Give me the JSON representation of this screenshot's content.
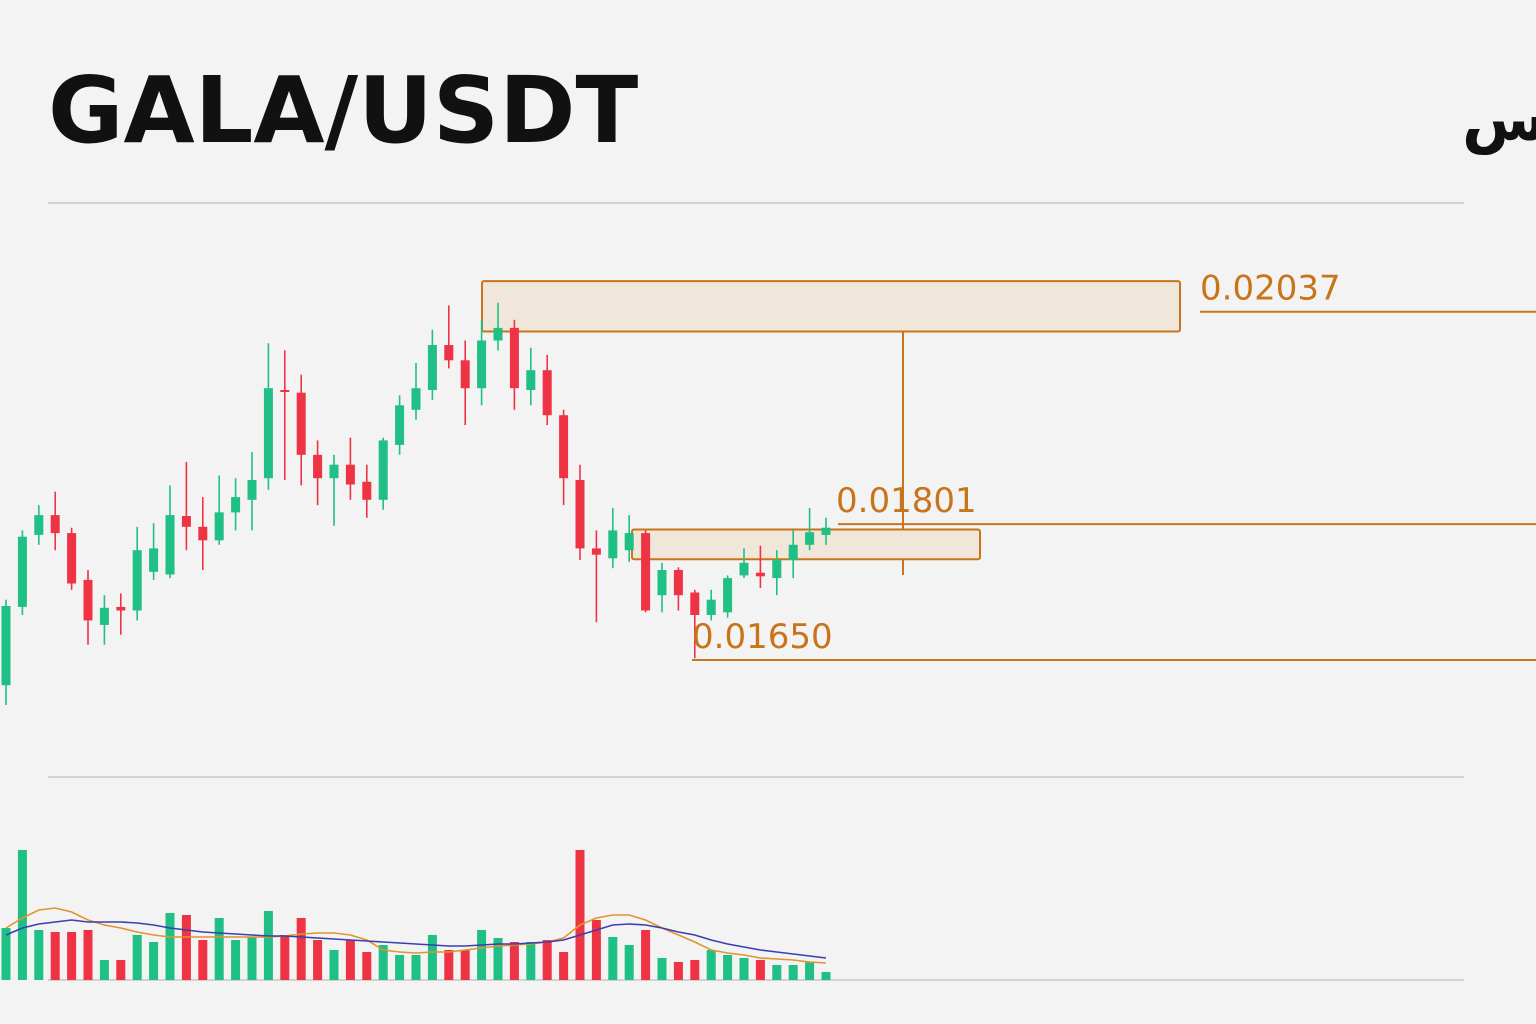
{
  "chart_data": {
    "type": "candlestick",
    "title": "GALA/USDT",
    "subtitle": "پر یرانسس",
    "up_color": "#1fbf86",
    "down_color": "#ee3344",
    "level_color": "#c8741a",
    "zone_fill": "#f0e6da",
    "ylim": [
      0.0152,
      0.0216
    ],
    "open": [
      0.01622,
      0.01709,
      0.01789,
      0.01811,
      0.01791,
      0.01739,
      0.01689,
      0.01709,
      0.01705,
      0.01748,
      0.01745,
      0.0181,
      0.01798,
      0.01783,
      0.01814,
      0.01828,
      0.01852,
      0.0195,
      0.01947,
      0.01878,
      0.01852,
      0.01867,
      0.01848,
      0.01828,
      0.01889,
      0.01928,
      0.0195,
      0.02,
      0.01983,
      0.01952,
      0.02005,
      0.02019,
      0.0195,
      0.01972,
      0.01922,
      0.0185,
      0.01774,
      0.01763,
      0.01772,
      0.01791,
      0.01722,
      0.0175,
      0.01725,
      0.017,
      0.01703,
      0.01744,
      0.01747,
      0.01741,
      0.01761,
      0.01778,
      0.01789
    ],
    "high": [
      0.01717,
      0.01794,
      0.01822,
      0.01837,
      0.01797,
      0.0175,
      0.01722,
      0.01724,
      0.01798,
      0.01802,
      0.01844,
      0.0187,
      0.01831,
      0.01855,
      0.01852,
      0.01881,
      0.02002,
      0.01994,
      0.01967,
      0.01894,
      0.01878,
      0.01897,
      0.01867,
      0.01897,
      0.01944,
      0.0198,
      0.02017,
      0.02044,
      0.02005,
      0.02028,
      0.02047,
      0.02028,
      0.01997,
      0.01989,
      0.01928,
      0.01867,
      0.01794,
      0.01819,
      0.01811,
      0.01794,
      0.01758,
      0.01753,
      0.01728,
      0.01728,
      0.01744,
      0.01774,
      0.01777,
      0.01772,
      0.01794,
      0.01819,
      0.01808
    ],
    "low": [
      0.016,
      0.017,
      0.01778,
      0.01772,
      0.01728,
      0.01667,
      0.01667,
      0.01678,
      0.01694,
      0.01739,
      0.01741,
      0.01772,
      0.0175,
      0.01778,
      0.01794,
      0.01794,
      0.01839,
      0.0185,
      0.01844,
      0.01822,
      0.01799,
      0.01828,
      0.01808,
      0.01817,
      0.01878,
      0.01917,
      0.01939,
      0.01974,
      0.01911,
      0.01933,
      0.01994,
      0.01928,
      0.01933,
      0.01911,
      0.01822,
      0.01761,
      0.01692,
      0.01752,
      0.01759,
      0.01703,
      0.01703,
      0.01705,
      0.01652,
      0.01694,
      0.01697,
      0.01741,
      0.0173,
      0.01722,
      0.01741,
      0.01772,
      0.01778
    ],
    "close": [
      0.0171,
      0.01787,
      0.01811,
      0.01791,
      0.01735,
      0.01694,
      0.01708,
      0.01705,
      0.01772,
      0.01774,
      0.01811,
      0.01798,
      0.01783,
      0.01814,
      0.01831,
      0.0185,
      0.01952,
      0.01948,
      0.01878,
      0.01852,
      0.01867,
      0.01845,
      0.01828,
      0.01894,
      0.01933,
      0.01952,
      0.02,
      0.01983,
      0.01952,
      0.02005,
      0.02019,
      0.01952,
      0.01972,
      0.01922,
      0.01852,
      0.01774,
      0.01767,
      0.01794,
      0.01791,
      0.01705,
      0.0175,
      0.01722,
      0.017,
      0.01717,
      0.01741,
      0.01758,
      0.01743,
      0.01761,
      0.01778,
      0.01792,
      0.01797
    ],
    "volume": [
      52,
      130,
      50,
      48,
      48,
      50,
      20,
      20,
      45,
      38,
      67,
      65,
      40,
      62,
      40,
      43,
      69,
      45,
      62,
      40,
      30,
      40,
      28,
      35,
      25,
      25,
      45,
      30,
      30,
      50,
      42,
      38,
      38,
      40,
      28,
      130,
      60,
      43,
      35,
      50,
      22,
      18,
      20,
      30,
      25,
      22,
      20,
      15,
      15,
      18,
      8
    ],
    "volume_lim": [
      0,
      140
    ],
    "volume_ma": [
      {
        "color": "#e0952e",
        "values": [
          52,
          62,
          70,
          72,
          68,
          60,
          55,
          52,
          48,
          45,
          43,
          43,
          43,
          43,
          43,
          43,
          43,
          44,
          46,
          47,
          47,
          45,
          40,
          30,
          28,
          27,
          28,
          28,
          30,
          32,
          34,
          35,
          36,
          38,
          42,
          55,
          62,
          65,
          65,
          60,
          52,
          45,
          38,
          30,
          27,
          25,
          22,
          21,
          20,
          18,
          17
        ]
      },
      {
        "color": "#3a3fb0",
        "values": [
          45,
          52,
          56,
          58,
          60,
          58,
          58,
          58,
          57,
          55,
          52,
          50,
          48,
          47,
          46,
          45,
          44,
          44,
          43,
          42,
          41,
          40,
          39,
          38,
          37,
          36,
          35,
          34,
          34,
          35,
          36,
          36,
          37,
          38,
          40,
          45,
          50,
          55,
          56,
          55,
          52,
          48,
          45,
          40,
          36,
          33,
          30,
          28,
          26,
          24,
          22
        ]
      }
    ],
    "zones": [
      {
        "top": 0.02071,
        "bottom": 0.02015
      },
      {
        "top": 0.01795,
        "bottom": 0.01762
      }
    ],
    "levels": [
      0.02037,
      0.01801,
      {
        "value": 0.0165,
        "label": "0.01650"
      }
    ]
  }
}
